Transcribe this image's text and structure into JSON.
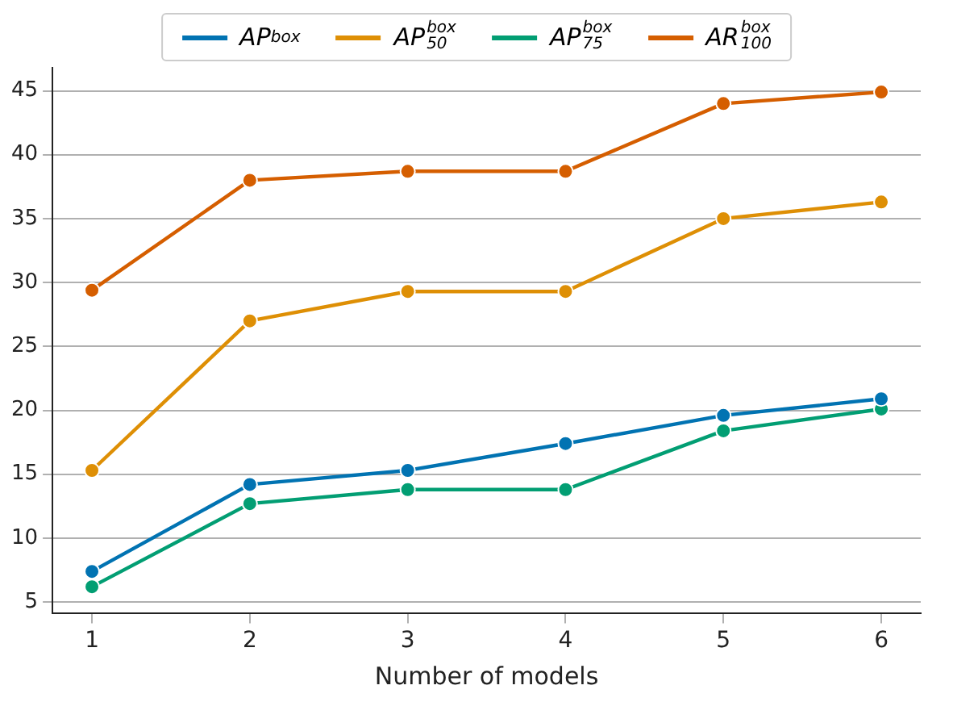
{
  "chart_data": {
    "type": "line",
    "xlabel": "Number of models",
    "x": [
      1,
      2,
      3,
      4,
      5,
      6
    ],
    "series": [
      {
        "name": "AP$^{box}$",
        "color": "#0173b2",
        "values": [
          7.4,
          14.2,
          15.3,
          17.4,
          19.6,
          20.9
        ]
      },
      {
        "name": "AP$^{box}$$_{50}$",
        "color": "#de8f05",
        "values": [
          15.3,
          27.0,
          29.3,
          29.3,
          35.0,
          36.3
        ]
      },
      {
        "name": "AP$^{box}$$_{75}$",
        "color": "#029e73",
        "values": [
          6.2,
          12.7,
          13.8,
          13.8,
          18.4,
          20.1
        ]
      },
      {
        "name": "AR$^{box}$$_{100}$",
        "color": "#d55e00",
        "values": [
          29.4,
          38.0,
          38.7,
          38.7,
          44.0,
          44.9
        ]
      }
    ],
    "xlim": [
      0.75,
      6.25
    ],
    "xticks": [
      1,
      2,
      3,
      4,
      5,
      6
    ],
    "ylim": [
      4.1,
      46.8
    ],
    "yticks": [
      5,
      10,
      15,
      20,
      25,
      30,
      35,
      40,
      45
    ],
    "grid": "y",
    "legend": "top",
    "marker": "circle",
    "line_style": "solid"
  }
}
